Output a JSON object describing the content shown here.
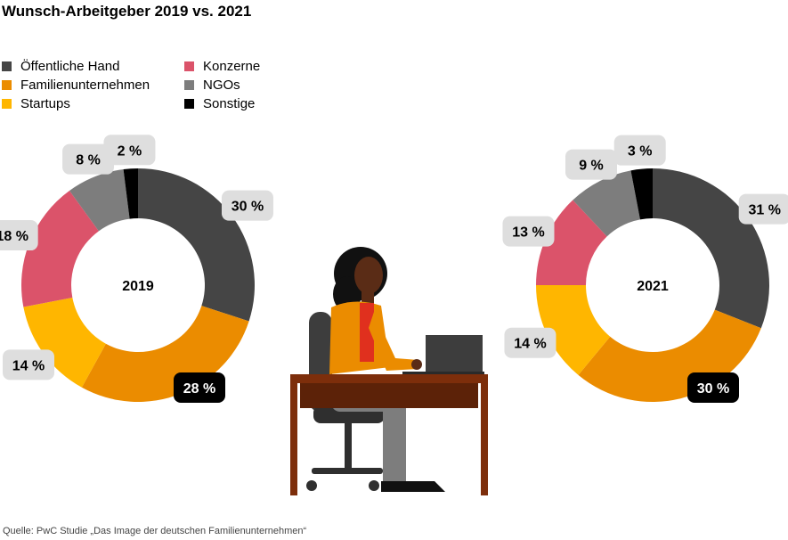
{
  "title": "Wunsch-Arbeitgeber 2019 vs. 2021",
  "source": "Quelle: PwC Studie „Das Image der deutschen Familienunternehmen“",
  "legend": [
    {
      "label": "Öffentliche Hand",
      "color": "#454545"
    },
    {
      "label": "Familienunternehmen",
      "color": "#eb8c00"
    },
    {
      "label": "Startups",
      "color": "#ffb600"
    },
    {
      "label": "Konzerne",
      "color": "#db536a"
    },
    {
      "label": "NGOs",
      "color": "#7d7d7d"
    },
    {
      "label": "Sonstige",
      "color": "#000000"
    }
  ],
  "chart_data": [
    {
      "type": "pie",
      "title": "2019",
      "categories": [
        "Öffentliche Hand",
        "Familienunternehmen",
        "Startups",
        "Konzerne",
        "NGOs",
        "Sonstige"
      ],
      "values": [
        30,
        28,
        14,
        18,
        8,
        2
      ],
      "labels": [
        "30 %",
        "28 %",
        "14 %",
        "18 %",
        "8 %",
        "2 %"
      ]
    },
    {
      "type": "pie",
      "title": "2021",
      "categories": [
        "Öffentliche Hand",
        "Familienunternehmen",
        "Startups",
        "Konzerne",
        "NGOs",
        "Sonstige"
      ],
      "values": [
        31,
        30,
        14,
        13,
        9,
        3
      ],
      "labels": [
        "31 %",
        "30 %",
        "14 %",
        "13 %",
        "9 %",
        "3 %"
      ]
    }
  ]
}
